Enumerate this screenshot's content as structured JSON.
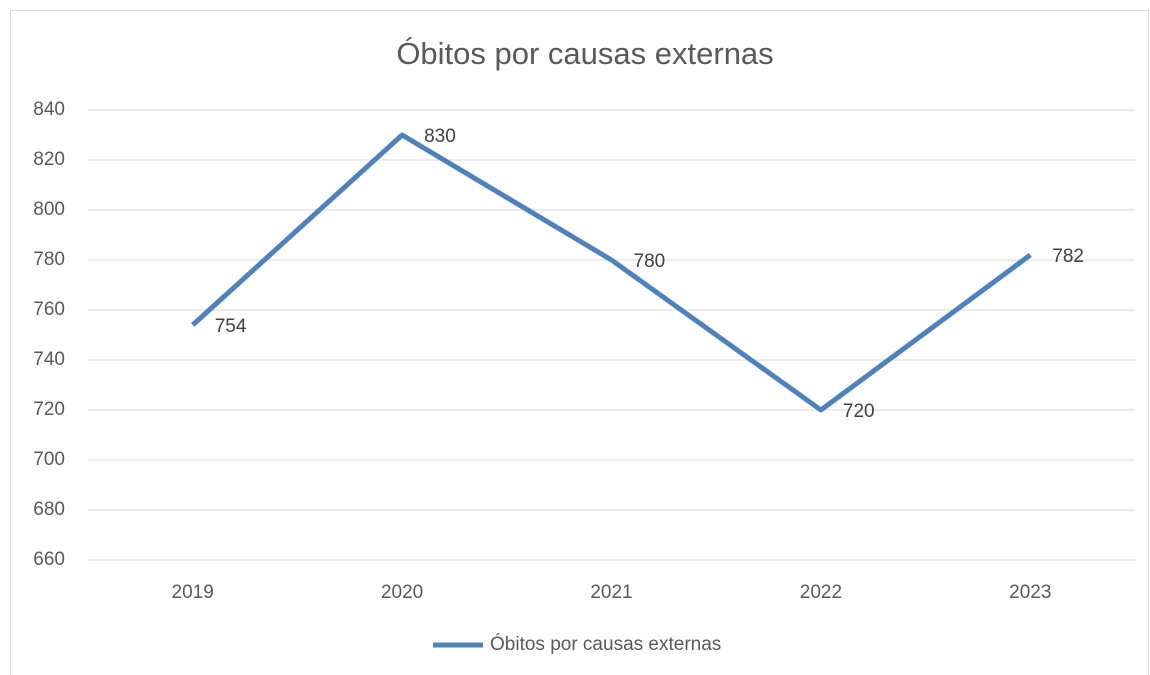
{
  "chart_data": {
    "type": "line",
    "title": "Óbitos por causas externas",
    "categories": [
      "2019",
      "2020",
      "2021",
      "2022",
      "2023"
    ],
    "series": [
      {
        "name": "Óbitos por causas externas",
        "color": "#4f81bd",
        "values": [
          754,
          830,
          780,
          720,
          782
        ]
      }
    ],
    "ylim": [
      660,
      840
    ],
    "yticks": [
      660,
      680,
      700,
      720,
      740,
      760,
      780,
      800,
      820,
      840
    ],
    "grid": true,
    "legend": "bottom",
    "data_labels": true
  }
}
